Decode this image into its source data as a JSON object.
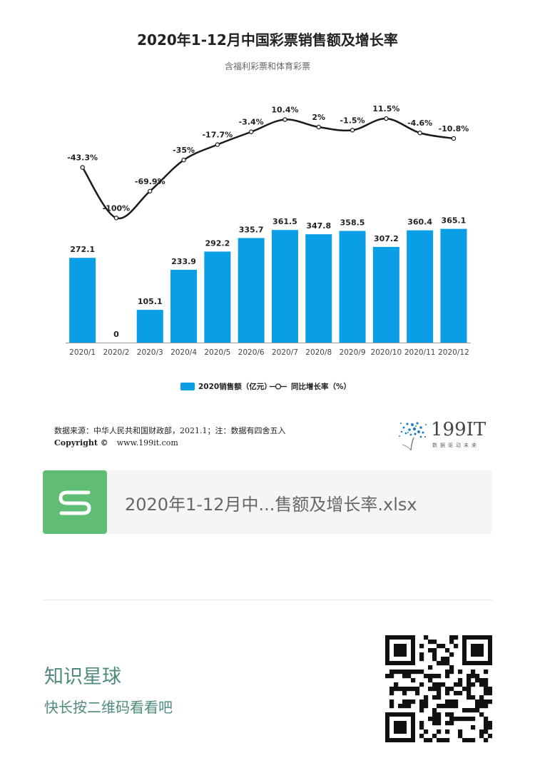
{
  "chart_data": {
    "type": "bar+line",
    "title": "2020年1-12月中国彩票销售额及增长率",
    "subtitle": "含福利彩票和体育彩票",
    "categories": [
      "2020/1",
      "2020/2",
      "2020/3",
      "2020/4",
      "2020/5",
      "2020/6",
      "2020/7",
      "2020/8",
      "2020/9",
      "2020/10",
      "2020/11",
      "2020/12"
    ],
    "series": [
      {
        "name": "2020销售额（亿元）",
        "type": "bar",
        "values": [
          272.1,
          0,
          105.1,
          233.9,
          292.2,
          335.7,
          361.5,
          347.8,
          358.5,
          307.2,
          360.4,
          365.1
        ],
        "labels": [
          "272.1",
          "0",
          "105.1",
          "233.9",
          "292.2",
          "335.7",
          "361.5",
          "347.8",
          "358.5",
          "307.2",
          "360.4",
          "365.1"
        ]
      },
      {
        "name": "同比增长率（%）",
        "type": "line",
        "values": [
          -43.3,
          -100,
          -69.9,
          -35,
          -17.7,
          -3.4,
          10.4,
          2,
          -1.5,
          11.5,
          -4.6,
          -10.8
        ],
        "labels": [
          "-43.3%",
          "-100%",
          "-69.9%",
          "-35%",
          "-17.7%",
          "-3.4%",
          "10.4%",
          "2%",
          "-1.5%",
          "11.5%",
          "-4.6%",
          "-10.8%"
        ]
      }
    ],
    "bar_ylim": [
      0,
      500
    ],
    "line_ylim": [
      -110,
      20
    ],
    "grid": false,
    "legend_position": "bottom",
    "colors": {
      "bar": "#0a9ee6",
      "line": "#1a1a1a"
    }
  },
  "footer": {
    "source": "数据来源：中华人民共和国财政部，2021.1；注：数据有四舍五入",
    "copyright_label": "Copyright ©",
    "copyright_url": "www.199it.com"
  },
  "logo": {
    "text": "199IT",
    "tagline": "数据驱动未来"
  },
  "attachment": {
    "icon": "file-s-icon",
    "file_name": "2020年1-12月中...售额及增长率.xlsx",
    "color": "#5fbd74"
  },
  "promo": {
    "title": "知识星球",
    "subtitle": "快长按二维码看看吧",
    "qr_icon": "qr-code-icon"
  }
}
